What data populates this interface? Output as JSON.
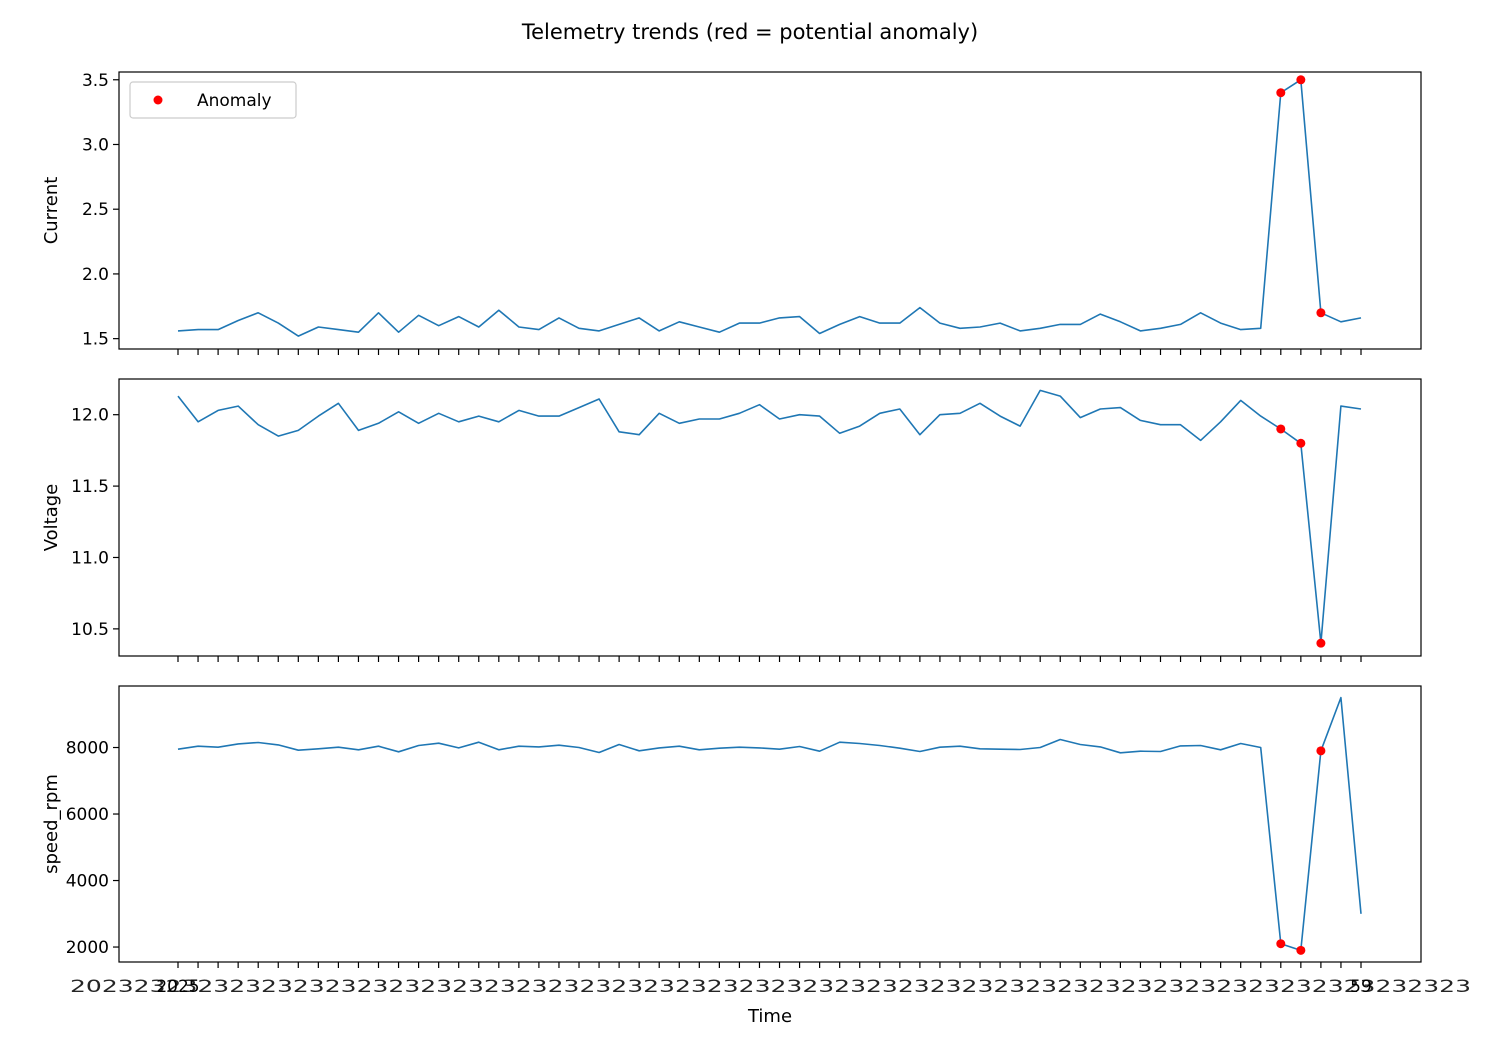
{
  "chart_data": {
    "type": "line",
    "title": "Telemetry trends (red = potential anomaly)",
    "xlabel": "Time",
    "x_tick_label_start": "2025",
    "x_tick_label_end": "59",
    "n_points": 60,
    "line_color": "#1f77b4",
    "anomaly_color": "#ff0000",
    "legend": {
      "label": "Anomaly",
      "placement": "upper-left"
    },
    "anomaly_indices": [
      55,
      56,
      57
    ],
    "panels": [
      {
        "ylabel": "Current",
        "ylim": [
          1.42,
          3.56
        ],
        "yticks": [
          1.5,
          2.0,
          2.5,
          3.0,
          3.5
        ],
        "ytick_labels": [
          "1.5",
          "2.0",
          "2.5",
          "3.0",
          "3.5"
        ],
        "values": [
          1.56,
          1.57,
          1.57,
          1.64,
          1.7,
          1.62,
          1.52,
          1.59,
          1.57,
          1.55,
          1.7,
          1.55,
          1.68,
          1.6,
          1.67,
          1.59,
          1.72,
          1.59,
          1.57,
          1.66,
          1.58,
          1.56,
          1.61,
          1.66,
          1.56,
          1.63,
          1.59,
          1.55,
          1.62,
          1.62,
          1.66,
          1.67,
          1.54,
          1.61,
          1.67,
          1.62,
          1.62,
          1.74,
          1.62,
          1.58,
          1.59,
          1.62,
          1.56,
          1.58,
          1.61,
          1.61,
          1.69,
          1.63,
          1.56,
          1.58,
          1.61,
          1.7,
          1.62,
          1.57,
          1.58,
          3.4,
          3.5,
          1.7,
          1.63,
          1.66
        ]
      },
      {
        "ylabel": "Voltage",
        "ylim": [
          10.31,
          12.25
        ],
        "yticks": [
          10.5,
          11.0,
          11.5,
          12.0
        ],
        "ytick_labels": [
          "10.5",
          "11.0",
          "11.5",
          "12.0"
        ],
        "values": [
          12.13,
          11.95,
          12.03,
          12.06,
          11.93,
          11.85,
          11.89,
          11.99,
          12.08,
          11.89,
          11.94,
          12.02,
          11.94,
          12.01,
          11.95,
          11.99,
          11.95,
          12.03,
          11.99,
          11.99,
          12.05,
          12.11,
          11.88,
          11.86,
          12.01,
          11.94,
          11.97,
          11.97,
          12.01,
          12.07,
          11.97,
          12.0,
          11.99,
          11.87,
          11.92,
          12.01,
          12.04,
          11.86,
          12.0,
          12.01,
          12.08,
          11.99,
          11.92,
          12.17,
          12.13,
          11.98,
          12.04,
          12.05,
          11.96,
          11.93,
          11.93,
          11.82,
          11.95,
          12.1,
          11.99,
          11.9,
          11.8,
          10.4,
          12.06,
          12.04
        ]
      },
      {
        "ylabel": "speed_rpm",
        "ylim": [
          1550,
          9850
        ],
        "yticks": [
          2000,
          4000,
          6000,
          8000
        ],
        "ytick_labels": [
          "2000",
          "4000",
          "6000",
          "8000"
        ],
        "values": [
          7950,
          8040,
          8010,
          8110,
          8150,
          8080,
          7920,
          7960,
          8010,
          7930,
          8040,
          7870,
          8060,
          8130,
          7990,
          8160,
          7930,
          8040,
          8020,
          8070,
          8000,
          7850,
          8090,
          7900,
          7990,
          8040,
          7930,
          7980,
          8010,
          7990,
          7950,
          8030,
          7890,
          8160,
          8120,
          8060,
          7980,
          7880,
          8010,
          8040,
          7960,
          7950,
          7940,
          8000,
          8240,
          8090,
          8020,
          7840,
          7890,
          7880,
          8050,
          8060,
          7930,
          8120,
          8000,
          2100,
          1900,
          7900,
          9500,
          3000
        ]
      }
    ]
  }
}
